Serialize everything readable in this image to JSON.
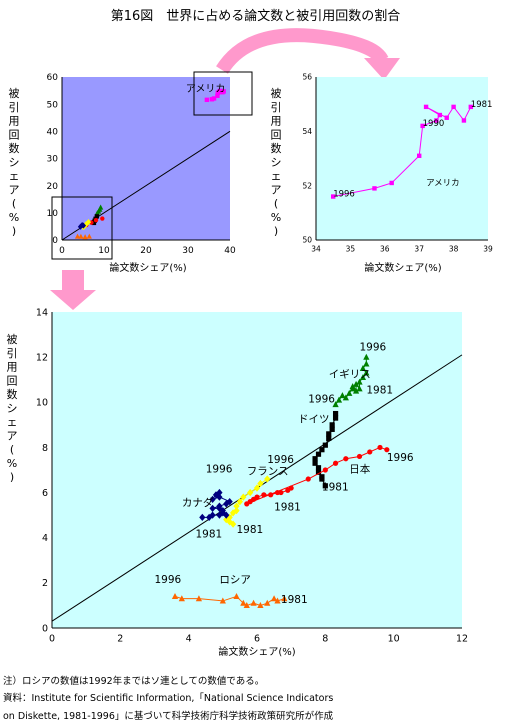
{
  "figure_title": "第16図　世界に占める論文数と被引用回数の割合",
  "notes": {
    "note": "注）ロシアの数値は1992年まではソ連としての数値である。",
    "source_line1": "資料：Institute for Scientific Information,「National Science Indicators",
    "source_line2": "on Diskette, 1981-1996」に基づいて科学技術庁科学技術政策研究所が作成"
  },
  "colors": {
    "overview_bg": "#9999ff",
    "zoom_bg": "#ccffff",
    "arrow": "#ff99cc",
    "usa": "#ff00ff",
    "uk": "#008000",
    "germany": "#000000",
    "japan": "#ff0000",
    "france": "#ffff00",
    "canada": "#000080",
    "russia": "#ff6600",
    "fit_line": "#000000"
  },
  "chart_data": [
    {
      "id": "overview",
      "type": "scatter",
      "title": "",
      "xlabel": "論文数シェア(%)",
      "ylabel": "被引用回数シェア (%)",
      "xlim": [
        0,
        40
      ],
      "ylim": [
        0,
        60
      ],
      "xticks": [
        0,
        10,
        20,
        30,
        40
      ],
      "yticks": [
        0,
        10,
        20,
        30,
        40,
        50,
        60
      ],
      "grid": false,
      "legend": "none",
      "annotations": [
        {
          "text": "アメリカ",
          "x": 29.5,
          "y": 54.5
        }
      ],
      "trend_line": [
        [
          0,
          0
        ],
        [
          40,
          40
        ]
      ],
      "series": [
        {
          "name": "アメリカ",
          "color_key": "usa",
          "marker": "square",
          "x": [
            34.5,
            35.7,
            36.2,
            37.0,
            37.1,
            37.4,
            37.5,
            37.6,
            37.7,
            38.0,
            38.2,
            38.5
          ],
          "y": [
            51.6,
            51.8,
            52.1,
            53.1,
            54.2,
            54.4,
            54.6,
            54.8,
            54.9,
            54.6,
            54.4,
            54.7
          ]
        },
        {
          "name": "イギリス",
          "color_key": "uk",
          "marker": "triangle",
          "x": [
            8.4,
            8.7,
            9.0,
            9.2
          ],
          "y": [
            9.9,
            10.5,
            11.2,
            12.0
          ]
        },
        {
          "name": "ドイツ",
          "color_key": "germany",
          "marker": "square",
          "x": [
            7.6,
            7.8,
            8.0,
            8.3
          ],
          "y": [
            6.3,
            7.1,
            7.8,
            8.7
          ]
        },
        {
          "name": "日本",
          "color_key": "japan",
          "marker": "circle",
          "x": [
            5.8,
            7.0,
            8.1,
            9.6
          ],
          "y": [
            5.5,
            6.4,
            7.3,
            7.9
          ]
        },
        {
          "name": "フランス",
          "color_key": "france",
          "marker": "diamond",
          "x": [
            5.1,
            5.5,
            5.8,
            6.3
          ],
          "y": [
            4.7,
            5.3,
            5.9,
            6.6
          ]
        },
        {
          "name": "カナダ",
          "color_key": "canada",
          "marker": "diamond",
          "x": [
            4.4,
            4.8,
            5.1
          ],
          "y": [
            4.9,
            5.5,
            5.3
          ]
        },
        {
          "name": "ロシア",
          "color_key": "russia",
          "marker": "triangle",
          "x": [
            3.7,
            4.5,
            5.5,
            6.5
          ],
          "y": [
            1.3,
            1.25,
            1.1,
            1.3
          ]
        }
      ]
    },
    {
      "id": "usa_zoom",
      "type": "line",
      "title": "",
      "xlabel": "論文数シェア(%)",
      "ylabel": "被引用回数シェア (%)",
      "xlim": [
        34,
        39
      ],
      "ylim": [
        50,
        56
      ],
      "xticks": [
        34,
        35,
        36,
        37,
        38,
        39
      ],
      "yticks": [
        50,
        52,
        54,
        56
      ],
      "grid": false,
      "legend": "none",
      "annotations": [
        {
          "text": "1996",
          "x": 34.5,
          "y": 51.6
        },
        {
          "text": "1990",
          "x": 37.1,
          "y": 54.2
        },
        {
          "text": "1981",
          "x": 38.5,
          "y": 54.9
        },
        {
          "text": "アメリカ",
          "x": 37.2,
          "y": 52.0
        }
      ],
      "series": [
        {
          "name": "アメリカ",
          "color_key": "usa",
          "marker": "square",
          "x": [
            34.5,
            35.7,
            36.2,
            37.0,
            37.1,
            37.5,
            37.6,
            37.2,
            37.8,
            38.0,
            38.3,
            38.5
          ],
          "y": [
            51.6,
            51.9,
            52.1,
            53.1,
            54.2,
            54.4,
            54.6,
            54.9,
            54.5,
            54.9,
            54.4,
            54.9
          ]
        }
      ]
    },
    {
      "id": "main_zoom",
      "type": "line",
      "title": "",
      "xlabel": "論文数シェア(%)",
      "ylabel": "被引用回数シェア (%)",
      "xlim": [
        0,
        12
      ],
      "ylim": [
        0,
        14
      ],
      "xticks": [
        0,
        2,
        4,
        6,
        8,
        10,
        12
      ],
      "yticks": [
        0,
        2,
        4,
        6,
        8,
        10,
        12,
        14
      ],
      "grid": false,
      "legend": "none",
      "trend_line": [
        [
          0,
          0.3
        ],
        [
          12,
          12.1
        ]
      ],
      "annotations": [
        {
          "text": "1996",
          "x": 9.0,
          "y": 12.3
        },
        {
          "text": "イギリス",
          "x": 8.1,
          "y": 11.1
        },
        {
          "text": "1981",
          "x": 9.2,
          "y": 10.4
        },
        {
          "text": "1996",
          "x": 7.5,
          "y": 10.0
        },
        {
          "text": "ドイツ",
          "x": 7.2,
          "y": 9.1
        },
        {
          "text": "1996",
          "x": 6.3,
          "y": 7.3
        },
        {
          "text": "フランス",
          "x": 5.7,
          "y": 6.8
        },
        {
          "text": "日本",
          "x": 8.7,
          "y": 6.9
        },
        {
          "text": "1996",
          "x": 9.8,
          "y": 7.4
        },
        {
          "text": "1981",
          "x": 7.9,
          "y": 6.1
        },
        {
          "text": "1981",
          "x": 6.5,
          "y": 5.2
        },
        {
          "text": "1996",
          "x": 4.5,
          "y": 6.9
        },
        {
          "text": "カナダ",
          "x": 3.8,
          "y": 5.4
        },
        {
          "text": "1981",
          "x": 5.4,
          "y": 4.2
        },
        {
          "text": "1981",
          "x": 4.2,
          "y": 4.0
        },
        {
          "text": "1996",
          "x": 3.0,
          "y": 2.0
        },
        {
          "text": "ロシア",
          "x": 4.9,
          "y": 2.0
        },
        {
          "text": "1981",
          "x": 6.7,
          "y": 1.1
        }
      ],
      "series": [
        {
          "name": "イギリス",
          "color_key": "uk",
          "marker": "triangle",
          "x": [
            8.3,
            8.4,
            8.5,
            8.6,
            8.7,
            8.8,
            8.8,
            8.9,
            8.9,
            9.0,
            9.0,
            9.1,
            9.2,
            9.1,
            9.2,
            9.2
          ],
          "y": [
            9.9,
            10.1,
            10.3,
            10.2,
            10.4,
            10.6,
            10.7,
            10.5,
            10.8,
            10.6,
            10.9,
            11.1,
            11.3,
            11.5,
            11.7,
            12.0
          ]
        },
        {
          "name": "ドイツ",
          "color_key": "germany",
          "marker": "square",
          "x": [
            8.0,
            7.9,
            7.9,
            7.8,
            7.8,
            7.7,
            7.7,
            7.8,
            7.9,
            8.0,
            8.1,
            8.1,
            8.2,
            8.2,
            8.3,
            8.3
          ],
          "y": [
            6.3,
            6.6,
            6.7,
            6.9,
            7.1,
            7.3,
            7.5,
            7.7,
            7.9,
            8.1,
            8.4,
            8.6,
            8.8,
            9.0,
            9.3,
            9.5
          ]
        },
        {
          "name": "日本",
          "color_key": "japan",
          "marker": "circle",
          "x": [
            7.0,
            6.9,
            6.7,
            6.6,
            6.4,
            6.2,
            6.0,
            5.9,
            5.8,
            5.7,
            7.5,
            8.0,
            8.3,
            8.6,
            9.0,
            9.3,
            9.6,
            9.8
          ],
          "y": [
            6.2,
            6.1,
            6.0,
            6.0,
            5.9,
            5.9,
            5.8,
            5.7,
            5.6,
            5.5,
            6.6,
            7.0,
            7.3,
            7.5,
            7.6,
            7.8,
            8.0,
            7.9
          ]
        },
        {
          "name": "フランス",
          "color_key": "france",
          "marker": "diamond",
          "x": [
            5.3,
            5.2,
            5.1,
            5.2,
            5.3,
            5.4,
            5.4,
            5.5,
            5.6,
            5.8,
            6.0,
            6.1,
            6.3
          ],
          "y": [
            4.6,
            4.7,
            4.8,
            4.9,
            5.1,
            5.2,
            5.4,
            5.6,
            5.8,
            6.0,
            6.2,
            6.4,
            6.6
          ]
        },
        {
          "name": "カナダ",
          "color_key": "canada",
          "marker": "diamond",
          "x": [
            4.4,
            4.6,
            4.7,
            4.9,
            5.0,
            5.1,
            5.0,
            4.9,
            4.7,
            4.9,
            5.1,
            5.2,
            4.9,
            4.7,
            4.8,
            4.9
          ],
          "y": [
            4.9,
            4.9,
            5.0,
            5.0,
            5.1,
            5.0,
            5.2,
            5.3,
            5.3,
            5.4,
            5.5,
            5.6,
            5.8,
            5.7,
            5.9,
            6.0
          ]
        },
        {
          "name": "ロシア",
          "color_key": "russia",
          "marker": "triangle",
          "x": [
            3.6,
            3.8,
            4.3,
            5.0,
            5.4,
            5.6,
            5.7,
            5.9,
            6.1,
            6.3,
            6.5,
            6.6,
            6.8
          ],
          "y": [
            1.4,
            1.3,
            1.3,
            1.2,
            1.4,
            1.1,
            1.0,
            1.1,
            1.0,
            1.1,
            1.3,
            1.2,
            1.3
          ]
        }
      ]
    }
  ]
}
